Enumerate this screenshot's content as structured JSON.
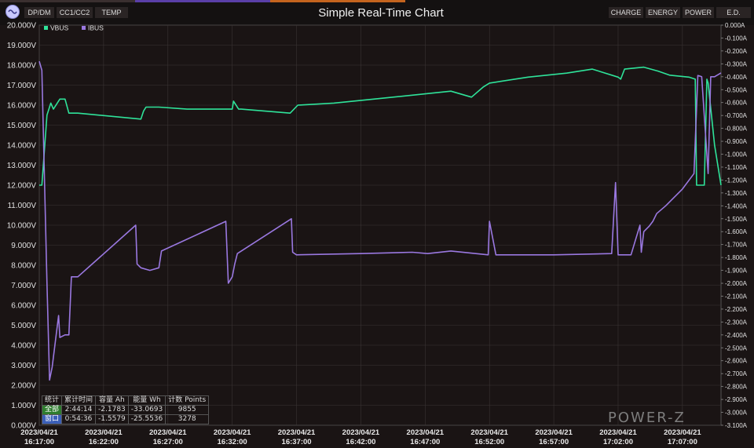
{
  "toolbar": {
    "left_tabs": [
      "DP/DM",
      "CC1/CC2",
      "TEMP"
    ],
    "right_tabs": [
      "CHARGE",
      "ENERGY",
      "POWER",
      "E.D."
    ]
  },
  "colors": {
    "vbus": "#2fe39a",
    "ibus": "#9a78e0",
    "background": "#1a1414",
    "grid": "#3a3434"
  },
  "chart_data": {
    "type": "line",
    "title": "Simple Real-Time Chart",
    "legend": [
      "VBUS",
      "IBUS"
    ],
    "legend_placement": "top-left",
    "grid": true,
    "x_tick_labels": [
      [
        "2023/04/21",
        "16:17:00"
      ],
      [
        "2023/04/21",
        "16:22:00"
      ],
      [
        "2023/04/21",
        "16:27:00"
      ],
      [
        "2023/04/21",
        "16:32:00"
      ],
      [
        "2023/04/21",
        "16:37:00"
      ],
      [
        "2023/04/21",
        "16:42:00"
      ],
      [
        "2023/04/21",
        "16:47:00"
      ],
      [
        "2023/04/21",
        "16:52:00"
      ],
      [
        "2023/04/21",
        "16:57:00"
      ],
      [
        "2023/04/21",
        "17:02:00"
      ],
      [
        "2023/04/21",
        "17:07:00"
      ]
    ],
    "xlim": [
      "16:17:00",
      "17:10:00"
    ],
    "y_left": {
      "label": "V",
      "lim": [
        0,
        20
      ],
      "ticks": [
        "0.000V",
        "1.000V",
        "2.000V",
        "3.000V",
        "4.000V",
        "5.000V",
        "6.000V",
        "7.000V",
        "8.000V",
        "9.000V",
        "10.000V",
        "11.000V",
        "12.000V",
        "13.000V",
        "14.000V",
        "15.000V",
        "16.000V",
        "17.000V",
        "18.000V",
        "19.000V",
        "20.000V"
      ]
    },
    "y_right": {
      "label": "A",
      "lim": [
        -3.1,
        0
      ],
      "ticks": [
        "0.000A",
        "-0.100A",
        "-0.200A",
        "-0.300A",
        "-0.400A",
        "-0.500A",
        "-0.600A",
        "-0.700A",
        "-0.800A",
        "-0.900A",
        "-1.000A",
        "-1.100A",
        "-1.200A",
        "-1.300A",
        "-1.400A",
        "-1.500A",
        "-1.600A",
        "-1.700A",
        "-1.800A",
        "-1.900A",
        "-2.000A",
        "-2.100A",
        "-2.200A",
        "-2.300A",
        "-2.400A",
        "-2.500A",
        "-2.600A",
        "-2.700A",
        "-2.800A",
        "-2.900A",
        "-3.000A",
        "-3.100A"
      ]
    },
    "series": [
      {
        "name": "VBUS",
        "axis": "left",
        "x": [
          "16:17:00",
          "16:17:12",
          "16:17:36",
          "16:17:54",
          "16:18:06",
          "16:18:36",
          "16:19:00",
          "16:19:18",
          "16:19:54",
          "16:20:00",
          "16:24:54",
          "16:25:06",
          "16:25:18",
          "16:26:06",
          "16:26:18",
          "16:28:30",
          "16:28:42",
          "16:32:00",
          "16:32:06",
          "16:32:30",
          "16:32:42",
          "16:36:30",
          "16:37:06",
          "16:39:54",
          "16:43:00",
          "16:46:00",
          "16:49:00",
          "16:50:36",
          "16:51:30",
          "16:52:00",
          "16:55:00",
          "16:58:00",
          "17:00:00",
          "17:02:00",
          "17:02:12",
          "17:02:30",
          "17:04:00",
          "17:05:06",
          "17:06:00",
          "17:07:30",
          "17:08:00",
          "17:08:06",
          "17:08:42",
          "17:08:54",
          "17:09:00",
          "17:09:30",
          "17:10:00"
        ],
        "values": [
          12.0,
          12.0,
          15.5,
          16.1,
          15.8,
          16.3,
          16.3,
          15.6,
          15.6,
          15.6,
          15.3,
          15.7,
          15.9,
          15.9,
          15.9,
          15.8,
          15.8,
          15.8,
          16.2,
          15.8,
          15.8,
          15.6,
          16.0,
          16.1,
          16.3,
          16.5,
          16.7,
          16.4,
          16.9,
          17.1,
          17.4,
          17.6,
          17.8,
          17.4,
          17.3,
          17.8,
          17.9,
          17.7,
          17.5,
          17.4,
          17.3,
          12.0,
          12.0,
          17.3,
          17.1,
          14.0,
          12.0
        ]
      },
      {
        "name": "IBUS",
        "axis": "right",
        "x": [
          "16:17:00",
          "16:17:12",
          "16:17:36",
          "16:17:48",
          "16:18:00",
          "16:18:30",
          "16:18:36",
          "16:19:00",
          "16:19:18",
          "16:19:30",
          "16:20:00",
          "16:24:30",
          "16:24:36",
          "16:24:54",
          "16:25:36",
          "16:26:18",
          "16:26:30",
          "16:31:30",
          "16:31:42",
          "16:32:00",
          "16:32:12",
          "16:32:24",
          "16:36:36",
          "16:36:42",
          "16:37:00",
          "16:42:00",
          "16:46:00",
          "16:47:12",
          "16:49:00",
          "16:51:54",
          "16:52:00",
          "16:52:30",
          "16:57:00",
          "17:01:30",
          "17:01:48",
          "17:02:00",
          "17:03:00",
          "17:03:42",
          "17:03:48",
          "17:04:00",
          "17:04:24",
          "17:04:42",
          "17:05:00",
          "17:05:42",
          "17:07:00",
          "17:07:54",
          "17:08:12",
          "17:08:30",
          "17:09:00",
          "17:09:12",
          "17:09:30",
          "17:10:00"
        ],
        "values": [
          -0.28,
          -0.35,
          -2.0,
          -2.75,
          -2.65,
          -2.25,
          -2.42,
          -2.4,
          -2.4,
          -1.95,
          -1.95,
          -1.55,
          -1.85,
          -1.88,
          -1.9,
          -1.88,
          -1.75,
          -1.52,
          -2.0,
          -1.95,
          -1.85,
          -1.77,
          -1.5,
          -1.76,
          -1.78,
          -1.77,
          -1.76,
          -1.77,
          -1.75,
          -1.78,
          -1.52,
          -1.78,
          -1.78,
          -1.77,
          -1.22,
          -1.78,
          -1.78,
          -1.55,
          -1.76,
          -1.6,
          -1.56,
          -1.52,
          -1.46,
          -1.4,
          -1.27,
          -1.15,
          -0.39,
          -0.4,
          -1.15,
          -0.4,
          -0.4,
          -0.37
        ]
      }
    ],
    "stats_table": {
      "headers": [
        "统计",
        "累计时间",
        "容量 Ah",
        "能量 Wh",
        "计数 Points"
      ],
      "rows": [
        [
          "全部",
          "2:44:14",
          "-2.1783",
          "-33.0693",
          "9855"
        ],
        [
          "窗口",
          "0:54:36",
          "-1.5579",
          "-25.5536",
          "3278"
        ]
      ]
    },
    "watermark": "POWER-Z"
  }
}
